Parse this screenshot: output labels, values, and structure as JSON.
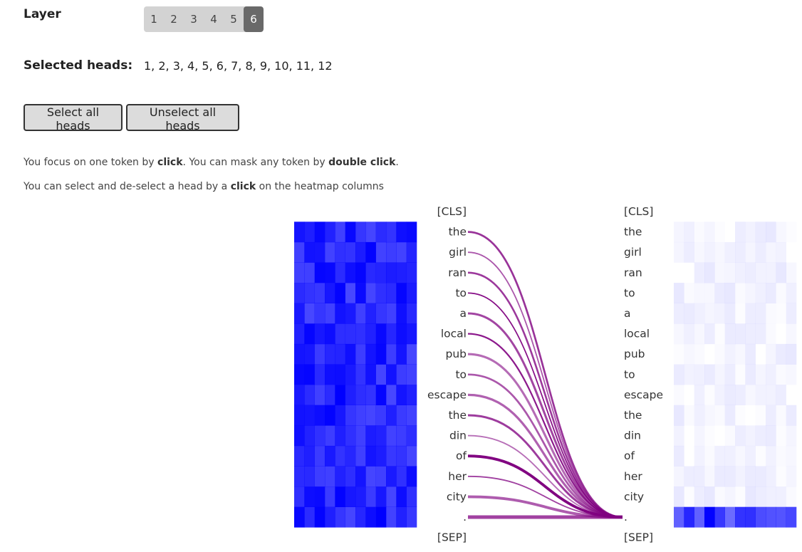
{
  "layer": {
    "label": "Layer",
    "options": [
      "1",
      "2",
      "3",
      "4",
      "5",
      "6"
    ],
    "selected": "6"
  },
  "heads": {
    "label": "Selected heads:",
    "value": "1, 2, 3, 4, 5, 6, 7, 8, 9, 10, 11, 12"
  },
  "buttons": {
    "select_all": "Select all heads",
    "unselect_all": "Unselect all heads"
  },
  "info": {
    "line1": {
      "pre": "You focus on one token by ",
      "b1": "click",
      "mid": ". You can mask any token by ",
      "b2": "double click",
      "post": "."
    },
    "line2": {
      "pre": "You can select and de-select a head by a ",
      "b1": "click",
      "post": " on the heatmap columns"
    }
  },
  "tokens": [
    "[CLS]",
    "the",
    "girl",
    "ran",
    "to",
    "a",
    "local",
    "pub",
    "to",
    "escape",
    "the",
    "din",
    "of",
    "her",
    "city",
    ".",
    "[SEP]"
  ],
  "attention": {
    "focus_token_index": 15,
    "line_color": "#800080",
    "heatmap_color": "#0000ff"
  }
}
